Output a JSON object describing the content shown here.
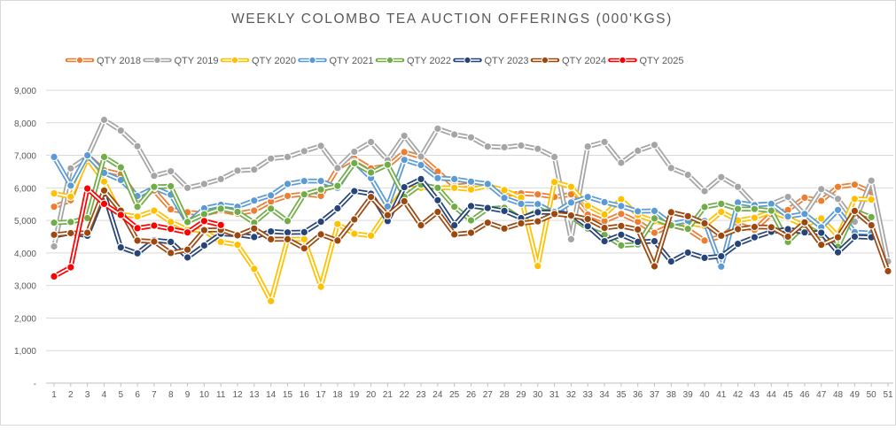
{
  "chart_data": {
    "type": "line",
    "title": "WEEKLY COLOMBO TEA AUCTION OFFERINGS (000'KGS)",
    "xlabel": "",
    "ylabel": "",
    "ylim": [
      0,
      9000
    ],
    "y_ticks": [
      "-",
      "1,000",
      "2,000",
      "3,000",
      "4,000",
      "5,000",
      "6,000",
      "7,000",
      "8,000",
      "9,000"
    ],
    "grid": true,
    "legend_position": "top",
    "x": [
      1,
      2,
      3,
      4,
      5,
      6,
      7,
      8,
      9,
      10,
      11,
      12,
      13,
      14,
      15,
      16,
      17,
      18,
      19,
      20,
      21,
      22,
      23,
      24,
      25,
      26,
      27,
      28,
      29,
      30,
      31,
      32,
      33,
      34,
      35,
      36,
      37,
      38,
      39,
      40,
      41,
      42,
      43,
      44,
      45,
      46,
      47,
      48,
      49,
      50,
      51
    ],
    "series": [
      {
        "name": "QTY 2018",
        "color": "#ED7D31",
        "values": [
          5420,
          5620,
          7000,
          6540,
          6420,
          5700,
          5920,
          5340,
          5250,
          5200,
          5310,
          5210,
          5300,
          5580,
          5750,
          5810,
          5750,
          6600,
          6900,
          6600,
          6670,
          7100,
          6950,
          6500,
          6050,
          6100,
          6100,
          5800,
          5830,
          5800,
          5720,
          5800,
          5180,
          4980,
          5200,
          4960,
          4620,
          4850,
          4720,
          4380,
          4500,
          4890,
          4710,
          5200,
          5320,
          5700,
          5600,
          6030,
          6100,
          5870,
          null
        ]
      },
      {
        "name": "QTY 2019",
        "color": "#A5A5A5",
        "values": [
          4200,
          6600,
          6950,
          8090,
          7760,
          7280,
          6370,
          6510,
          6000,
          6120,
          6270,
          6530,
          6560,
          6900,
          6950,
          7130,
          7290,
          6610,
          7110,
          7410,
          6850,
          7600,
          6960,
          7820,
          7640,
          7550,
          7270,
          7250,
          7300,
          7200,
          6950,
          4420,
          7270,
          7410,
          6770,
          7140,
          7320,
          6610,
          6400,
          5900,
          6330,
          6030,
          5490,
          5500,
          5720,
          5180,
          5960,
          5660,
          4960,
          6220,
          3740
        ]
      },
      {
        "name": "QTY 2020",
        "color": "#FFC000",
        "values": [
          5830,
          5730,
          6900,
          6190,
          5190,
          5120,
          5300,
          4950,
          4720,
          4680,
          4340,
          4250,
          3510,
          2520,
          4420,
          4420,
          2960,
          4890,
          4590,
          4530,
          5280,
          5980,
          6000,
          6000,
          6000,
          5950,
          6060,
          5930,
          5700,
          3600,
          6180,
          6030,
          5450,
          5180,
          5650,
          5160,
          4980,
          4880,
          4920,
          4830,
          5260,
          5000,
          5080,
          5270,
          5070,
          4840,
          5060,
          4520,
          5660,
          5640,
          null
        ]
      },
      {
        "name": "QTY 2021",
        "color": "#5B9BD5",
        "values": [
          6950,
          6070,
          7000,
          6460,
          6240,
          5750,
          6000,
          5790,
          4920,
          5370,
          5480,
          5420,
          5610,
          5770,
          6120,
          6210,
          6210,
          6000,
          6800,
          6300,
          5430,
          6860,
          6700,
          6300,
          6270,
          6190,
          6120,
          5690,
          5510,
          5500,
          5230,
          5550,
          5720,
          5560,
          5440,
          5280,
          5290,
          4900,
          4990,
          4980,
          3580,
          5550,
          5470,
          5510,
          5120,
          5200,
          4790,
          5320,
          4640,
          4610,
          null
        ]
      },
      {
        "name": "QTY 2022",
        "color": "#70AD47",
        "values": [
          4930,
          4950,
          5070,
          6950,
          6630,
          5420,
          6030,
          6050,
          4950,
          5190,
          5360,
          5260,
          4930,
          5360,
          4980,
          5800,
          5950,
          6060,
          6760,
          6470,
          6710,
          5730,
          6100,
          6000,
          5420,
          5000,
          5360,
          5390,
          5050,
          5290,
          5280,
          5110,
          4750,
          4560,
          4230,
          4260,
          5060,
          4850,
          4740,
          5410,
          5510,
          5350,
          5350,
          5300,
          4340,
          4860,
          4550,
          4190,
          5290,
          5100,
          null
        ]
      },
      {
        "name": "QTY 2023",
        "color": "#264478",
        "values": [
          4520,
          4620,
          4530,
          5820,
          4170,
          3990,
          4390,
          4340,
          3860,
          4230,
          4590,
          4560,
          4490,
          4660,
          4630,
          4640,
          4960,
          5370,
          5900,
          5820,
          4980,
          6020,
          6270,
          5620,
          4850,
          5440,
          5380,
          5290,
          5070,
          5250,
          5250,
          5180,
          4820,
          4360,
          4560,
          4340,
          4360,
          3740,
          4010,
          3850,
          3900,
          4280,
          4480,
          4650,
          4730,
          4630,
          4620,
          4020,
          4500,
          4480,
          null
        ]
      },
      {
        "name": "QTY 2024",
        "color": "#9E480E",
        "values": [
          4560,
          4610,
          4620,
          5920,
          5300,
          4380,
          4350,
          4000,
          4100,
          4700,
          4710,
          4540,
          4750,
          4420,
          4420,
          4140,
          4570,
          4380,
          5030,
          5720,
          5160,
          5590,
          4850,
          5260,
          4570,
          4620,
          4930,
          4750,
          4910,
          4970,
          5200,
          5150,
          5040,
          4770,
          4830,
          4720,
          3590,
          5250,
          5130,
          4910,
          4530,
          4730,
          4800,
          4790,
          4500,
          4940,
          4250,
          4480,
          5290,
          4850,
          3440
        ]
      },
      {
        "name": "QTY 2025",
        "color": "#FF0000",
        "values": [
          3280,
          3560,
          5980,
          5510,
          5170,
          4760,
          4840,
          4740,
          4630,
          4980,
          4860,
          null,
          null,
          null,
          null,
          null,
          null,
          null,
          null,
          null,
          null,
          null,
          null,
          null,
          null,
          null,
          null,
          null,
          null,
          null,
          null,
          null,
          null,
          null,
          null,
          null,
          null,
          null,
          null,
          null,
          null,
          null,
          null,
          null,
          null,
          null,
          null,
          null,
          null,
          null,
          null
        ]
      }
    ]
  }
}
